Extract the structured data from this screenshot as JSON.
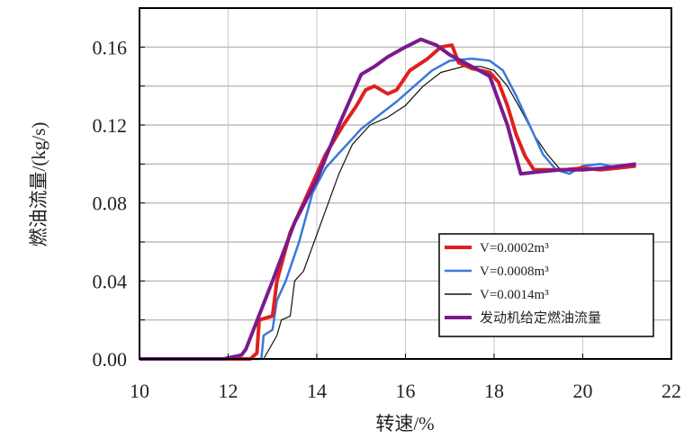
{
  "chart_data": {
    "type": "line",
    "title": "",
    "xlabel": "转速/%",
    "ylabel": "燃油流量/(kg/s)",
    "xlim": [
      10,
      22
    ],
    "ylim": [
      0,
      0.18
    ],
    "xticks": [
      "10",
      "12",
      "14",
      "16",
      "18",
      "20",
      "22"
    ],
    "yticks": [
      "0.00",
      "0.04",
      "0.08",
      "0.12",
      "0.16"
    ],
    "grid": true,
    "legend_position": "lower right",
    "series": [
      {
        "name": "V=0.0002m³",
        "color": "#e02020",
        "width": 4,
        "points": [
          [
            10,
            0
          ],
          [
            12.5,
            0
          ],
          [
            12.65,
            0.003
          ],
          [
            12.7,
            0.02
          ],
          [
            13.0,
            0.022
          ],
          [
            13.1,
            0.04
          ],
          [
            13.4,
            0.065
          ],
          [
            13.8,
            0.085
          ],
          [
            14.2,
            0.105
          ],
          [
            14.6,
            0.12
          ],
          [
            14.9,
            0.13
          ],
          [
            15.1,
            0.138
          ],
          [
            15.3,
            0.14
          ],
          [
            15.6,
            0.136
          ],
          [
            15.8,
            0.138
          ],
          [
            16.1,
            0.148
          ],
          [
            16.5,
            0.154
          ],
          [
            16.8,
            0.16
          ],
          [
            17.05,
            0.161
          ],
          [
            17.2,
            0.152
          ],
          [
            17.5,
            0.149
          ],
          [
            17.9,
            0.147
          ],
          [
            18.1,
            0.142
          ],
          [
            18.3,
            0.13
          ],
          [
            18.5,
            0.115
          ],
          [
            18.7,
            0.104
          ],
          [
            18.9,
            0.097
          ],
          [
            19.2,
            0.097
          ],
          [
            19.6,
            0.097
          ],
          [
            20.0,
            0.098
          ],
          [
            20.4,
            0.097
          ],
          [
            20.8,
            0.098
          ],
          [
            21.2,
            0.099
          ]
        ]
      },
      {
        "name": "V=0.0008m³",
        "color": "#3a78d8",
        "width": 2.5,
        "points": [
          [
            10,
            0
          ],
          [
            12.75,
            0
          ],
          [
            12.8,
            0.012
          ],
          [
            13.0,
            0.015
          ],
          [
            13.1,
            0.03
          ],
          [
            13.3,
            0.04
          ],
          [
            13.6,
            0.06
          ],
          [
            13.9,
            0.085
          ],
          [
            14.2,
            0.098
          ],
          [
            14.6,
            0.108
          ],
          [
            15.0,
            0.118
          ],
          [
            15.4,
            0.125
          ],
          [
            15.8,
            0.132
          ],
          [
            16.2,
            0.14
          ],
          [
            16.6,
            0.148
          ],
          [
            17.0,
            0.153
          ],
          [
            17.5,
            0.154
          ],
          [
            17.9,
            0.153
          ],
          [
            18.2,
            0.148
          ],
          [
            18.5,
            0.135
          ],
          [
            18.8,
            0.12
          ],
          [
            19.1,
            0.105
          ],
          [
            19.4,
            0.097
          ],
          [
            19.7,
            0.095
          ],
          [
            20.0,
            0.099
          ],
          [
            20.4,
            0.1
          ],
          [
            20.8,
            0.098
          ],
          [
            21.2,
            0.099
          ]
        ]
      },
      {
        "name": "V=0.0014m³",
        "color": "#111111",
        "width": 1.2,
        "points": [
          [
            10,
            0
          ],
          [
            12.8,
            0
          ],
          [
            13.1,
            0.012
          ],
          [
            13.2,
            0.02
          ],
          [
            13.4,
            0.022
          ],
          [
            13.5,
            0.04
          ],
          [
            13.7,
            0.045
          ],
          [
            14.1,
            0.07
          ],
          [
            14.5,
            0.095
          ],
          [
            14.8,
            0.11
          ],
          [
            15.2,
            0.12
          ],
          [
            15.6,
            0.124
          ],
          [
            16.0,
            0.13
          ],
          [
            16.4,
            0.14
          ],
          [
            16.8,
            0.147
          ],
          [
            17.3,
            0.15
          ],
          [
            17.7,
            0.15
          ],
          [
            18.0,
            0.148
          ],
          [
            18.3,
            0.14
          ],
          [
            18.6,
            0.128
          ],
          [
            18.9,
            0.115
          ],
          [
            19.2,
            0.105
          ],
          [
            19.5,
            0.097
          ],
          [
            19.9,
            0.098
          ],
          [
            20.4,
            0.098
          ],
          [
            20.8,
            0.099
          ],
          [
            21.2,
            0.1
          ]
        ]
      },
      {
        "name": "发动机给定燃油流量",
        "color": "#7a1a8c",
        "width": 4,
        "points": [
          [
            10,
            0
          ],
          [
            11.9,
            0
          ],
          [
            12.3,
            0.002
          ],
          [
            12.4,
            0.005
          ],
          [
            13.0,
            0.04
          ],
          [
            13.5,
            0.07
          ],
          [
            14.0,
            0.092
          ],
          [
            14.5,
            0.12
          ],
          [
            15.0,
            0.146
          ],
          [
            15.3,
            0.15
          ],
          [
            15.6,
            0.155
          ],
          [
            16.0,
            0.16
          ],
          [
            16.35,
            0.164
          ],
          [
            16.7,
            0.161
          ],
          [
            17.0,
            0.156
          ],
          [
            17.5,
            0.15
          ],
          [
            17.9,
            0.145
          ],
          [
            18.3,
            0.12
          ],
          [
            18.6,
            0.095
          ],
          [
            19.0,
            0.096
          ],
          [
            19.5,
            0.097
          ],
          [
            20.0,
            0.097
          ],
          [
            20.5,
            0.098
          ],
          [
            21.2,
            0.1
          ]
        ]
      }
    ]
  }
}
